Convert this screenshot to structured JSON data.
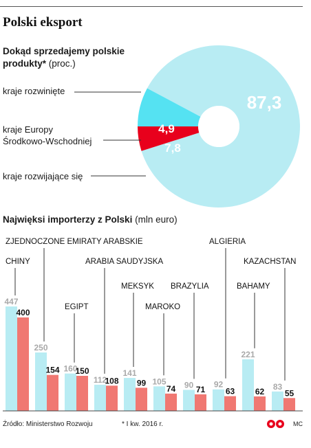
{
  "header": {
    "title": "Polski eksport"
  },
  "pie": {
    "title_bold": "Dokąd sprzedajemy polskie produkty*",
    "title_unit": "(proc.)",
    "labels": {
      "developed": "kraje rozwinięte",
      "ceeline1": "kraje Europy",
      "ceeline2": "Środkowo-Wschodniej",
      "developing": "kraje rozwijające się"
    }
  },
  "bars": {
    "title_bold": "Najwięksi importerzy z Polski",
    "title_unit": "(mln euro)"
  },
  "colors": {
    "light_blue": "#b8ecf3",
    "cyan": "#55e2f2",
    "red": "#e8001c",
    "salmon": "#f07872",
    "grey_text": "#a9a9a9"
  },
  "chart_data": [
    {
      "type": "pie",
      "title": "Dokąd sprzedajemy polskie produkty* (proc.)",
      "slices": [
        {
          "label": "kraje rozwinięte",
          "value": 87.3,
          "value_text": "87,3",
          "color": "#b8ecf3"
        },
        {
          "label": "kraje Europy Środkowo-Wschodniej",
          "value": 4.9,
          "value_text": "4,9",
          "color": "#e8001c"
        },
        {
          "label": "kraje rozwijające się",
          "value": 7.8,
          "value_text": "7,8",
          "color": "#55e2f2"
        }
      ]
    },
    {
      "type": "bar",
      "title": "Najwięksi importerzy z Polski (mln euro)",
      "categories": [
        "CHINY",
        "ZJEDNOCZONE EMIRATY ARABSKIE",
        "EGIPT",
        "ARABIA SAUDYJSKA",
        "MEKSYK",
        "MAROKO",
        "BRAZYLIA",
        "ALGIERIA",
        "BAHAMY",
        "KAZACHSTAN"
      ],
      "series": [
        {
          "color": "#b8ecf3",
          "values": [
            447,
            250,
            160,
            112,
            141,
            105,
            90,
            92,
            221,
            83
          ]
        },
        {
          "color": "#f07872",
          "values": [
            400,
            154,
            150,
            108,
            99,
            74,
            71,
            63,
            62,
            55
          ]
        }
      ],
      "ylim": [
        0,
        470
      ]
    }
  ],
  "footer": {
    "source": "Źródło: Ministerstwo Rozwoju",
    "note": "* I kw. 2016 r.",
    "credit": "MC"
  }
}
